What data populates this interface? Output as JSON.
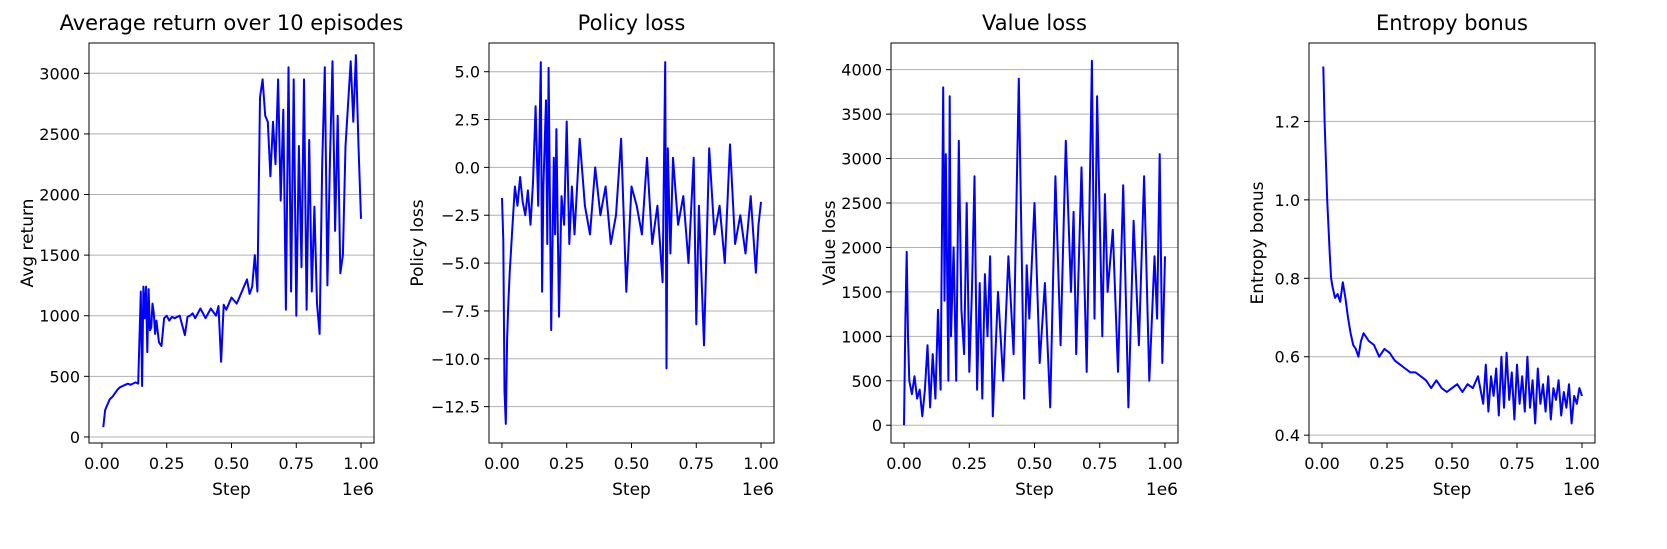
{
  "figure": {
    "panel_count": 4,
    "line_color": "#0000ff",
    "grid": "horizontal"
  },
  "chart_data": [
    {
      "type": "line",
      "title": "Average return over 10 episodes",
      "xlabel": "Step",
      "ylabel": "Avg return",
      "x_offset_label": "1e6",
      "xlim": [
        -0.05,
        1.05
      ],
      "ylim": [
        -50,
        3250
      ],
      "xticks": [
        0.0,
        0.25,
        0.5,
        0.75,
        1.0
      ],
      "xtick_labels": [
        "0.00",
        "0.25",
        "0.50",
        "0.75",
        "1.00"
      ],
      "yticks": [
        0,
        500,
        1000,
        1500,
        2000,
        2500,
        3000
      ],
      "ytick_labels": [
        "0",
        "500",
        "1000",
        "1500",
        "2000",
        "2500",
        "3000"
      ],
      "series": [
        {
          "x": [
            0.005,
            0.012,
            0.02,
            0.03,
            0.04,
            0.05,
            0.06,
            0.07,
            0.08,
            0.09,
            0.1,
            0.11,
            0.12,
            0.13,
            0.14,
            0.15,
            0.155,
            0.16,
            0.165,
            0.17,
            0.175,
            0.18,
            0.185,
            0.19,
            0.195,
            0.2,
            0.205,
            0.21,
            0.22,
            0.23,
            0.24,
            0.25,
            0.26,
            0.27,
            0.28,
            0.3,
            0.32,
            0.33,
            0.34,
            0.35,
            0.36,
            0.38,
            0.4,
            0.42,
            0.44,
            0.45,
            0.46,
            0.47,
            0.48,
            0.5,
            0.52,
            0.54,
            0.56,
            0.57,
            0.58,
            0.59,
            0.6,
            0.61,
            0.62,
            0.63,
            0.64,
            0.65,
            0.66,
            0.67,
            0.68,
            0.69,
            0.7,
            0.71,
            0.72,
            0.73,
            0.74,
            0.75,
            0.76,
            0.77,
            0.78,
            0.79,
            0.8,
            0.81,
            0.82,
            0.83,
            0.84,
            0.85,
            0.86,
            0.87,
            0.88,
            0.89,
            0.9,
            0.91,
            0.92,
            0.93,
            0.94,
            0.95,
            0.96,
            0.97,
            0.98,
            0.99,
            1.0
          ],
          "y": [
            80,
            220,
            260,
            310,
            330,
            360,
            390,
            410,
            420,
            430,
            440,
            430,
            440,
            450,
            440,
            1200,
            420,
            1240,
            980,
            1240,
            700,
            1220,
            880,
            900,
            1100,
            1020,
            850,
            960,
            780,
            750,
            980,
            1000,
            960,
            990,
            980,
            1000,
            840,
            990,
            1000,
            1020,
            980,
            1060,
            980,
            1060,
            1000,
            1080,
            620,
            1090,
            1050,
            1150,
            1100,
            1200,
            1300,
            1180,
            1240,
            1500,
            1200,
            2800,
            2950,
            2650,
            2600,
            2150,
            2600,
            2250,
            2950,
            1950,
            2700,
            1050,
            3050,
            1200,
            2950,
            1000,
            2400,
            1400,
            2950,
            1050,
            2450,
            1200,
            1900,
            1100,
            850,
            2250,
            3050,
            1250,
            2300,
            3100,
            1700,
            2650,
            1350,
            1500,
            2400,
            2750,
            3100,
            2600,
            3150,
            2400,
            1800
          ]
        }
      ]
    },
    {
      "type": "line",
      "title": "Policy loss",
      "xlabel": "Step",
      "ylabel": "Policy loss",
      "x_offset_label": "1e6",
      "xlim": [
        -0.05,
        1.05
      ],
      "ylim": [
        -14.4,
        6.5
      ],
      "xticks": [
        0.0,
        0.25,
        0.5,
        0.75,
        1.0
      ],
      "xtick_labels": [
        "0.00",
        "0.25",
        "0.50",
        "0.75",
        "1.00"
      ],
      "yticks": [
        -12.5,
        -10.0,
        -7.5,
        -5.0,
        -2.5,
        0.0,
        2.5,
        5.0
      ],
      "ytick_labels": [
        "−12.5",
        "−10.0",
        "−7.5",
        "−5.0",
        "−2.5",
        "0.0",
        "2.5",
        "5.0"
      ],
      "series": [
        {
          "x": [
            0.0,
            0.005,
            0.01,
            0.015,
            0.02,
            0.025,
            0.03,
            0.04,
            0.05,
            0.06,
            0.07,
            0.08,
            0.09,
            0.1,
            0.11,
            0.12,
            0.13,
            0.14,
            0.15,
            0.155,
            0.16,
            0.17,
            0.175,
            0.18,
            0.19,
            0.2,
            0.205,
            0.21,
            0.22,
            0.23,
            0.24,
            0.25,
            0.26,
            0.27,
            0.28,
            0.3,
            0.32,
            0.34,
            0.36,
            0.38,
            0.4,
            0.42,
            0.44,
            0.46,
            0.48,
            0.5,
            0.52,
            0.54,
            0.56,
            0.58,
            0.6,
            0.62,
            0.63,
            0.635,
            0.64,
            0.65,
            0.66,
            0.68,
            0.7,
            0.72,
            0.74,
            0.75,
            0.76,
            0.78,
            0.8,
            0.82,
            0.84,
            0.86,
            0.88,
            0.9,
            0.92,
            0.94,
            0.96,
            0.98,
            0.99,
            1.0
          ],
          "y": [
            -1.6,
            -3.8,
            -11.7,
            -13.4,
            -9.0,
            -7.0,
            -5.5,
            -3.2,
            -1.0,
            -2.0,
            -0.5,
            -1.8,
            -2.5,
            -1.2,
            -3.0,
            -0.8,
            3.2,
            -2.0,
            5.5,
            -6.5,
            -1.0,
            3.5,
            -4.0,
            5.2,
            -8.5,
            0.5,
            -3.5,
            2.0,
            -7.8,
            -1.5,
            -3.0,
            2.4,
            -4.0,
            -1.0,
            -3.5,
            1.5,
            -2.0,
            -3.5,
            0.0,
            -2.5,
            -1.0,
            -4.0,
            -2.5,
            1.5,
            -6.5,
            -1.0,
            -2.0,
            -3.5,
            0.5,
            -4.0,
            -2.0,
            -6.0,
            5.5,
            -10.5,
            1.0,
            -4.5,
            0.5,
            -3.0,
            -1.5,
            -5.0,
            0.5,
            -8.2,
            -2.0,
            -9.3,
            1.0,
            -3.5,
            -2.0,
            -5.0,
            1.2,
            -4.0,
            -2.5,
            -4.5,
            -1.5,
            -5.5,
            -3.0,
            -1.8
          ]
        }
      ]
    },
    {
      "type": "line",
      "title": "Value loss",
      "xlabel": "Step",
      "ylabel": "Value loss",
      "x_offset_label": "1e6",
      "xlim": [
        -0.05,
        1.05
      ],
      "ylim": [
        -200,
        4300
      ],
      "xticks": [
        0.0,
        0.25,
        0.5,
        0.75,
        1.0
      ],
      "xtick_labels": [
        "0.00",
        "0.25",
        "0.50",
        "0.75",
        "1.00"
      ],
      "yticks": [
        0,
        500,
        1000,
        1500,
        2000,
        2500,
        3000,
        3500,
        4000
      ],
      "ytick_labels": [
        "0",
        "500",
        "1000",
        "1500",
        "2000",
        "2500",
        "3000",
        "3500",
        "4000"
      ],
      "series": [
        {
          "x": [
            0.0,
            0.005,
            0.01,
            0.015,
            0.02,
            0.03,
            0.04,
            0.05,
            0.06,
            0.07,
            0.08,
            0.09,
            0.1,
            0.11,
            0.12,
            0.13,
            0.14,
            0.15,
            0.155,
            0.16,
            0.17,
            0.175,
            0.18,
            0.19,
            0.2,
            0.21,
            0.22,
            0.23,
            0.24,
            0.25,
            0.26,
            0.27,
            0.28,
            0.29,
            0.3,
            0.31,
            0.32,
            0.33,
            0.34,
            0.36,
            0.38,
            0.4,
            0.42,
            0.44,
            0.46,
            0.47,
            0.48,
            0.5,
            0.52,
            0.54,
            0.56,
            0.58,
            0.6,
            0.62,
            0.64,
            0.65,
            0.66,
            0.68,
            0.7,
            0.72,
            0.73,
            0.74,
            0.76,
            0.77,
            0.78,
            0.8,
            0.82,
            0.84,
            0.86,
            0.88,
            0.9,
            0.92,
            0.94,
            0.96,
            0.97,
            0.98,
            0.99,
            1.0
          ],
          "y": [
            0,
            1200,
            1950,
            1000,
            500,
            350,
            550,
            300,
            400,
            100,
            400,
            900,
            200,
            800,
            300,
            1300,
            400,
            3800,
            1400,
            3050,
            500,
            3700,
            1000,
            2000,
            500,
            3200,
            1300,
            800,
            2500,
            600,
            1500,
            2800,
            400,
            1600,
            300,
            1700,
            1000,
            1900,
            100,
            1500,
            500,
            1900,
            800,
            3900,
            300,
            1800,
            1200,
            2500,
            700,
            1600,
            200,
            2800,
            900,
            3200,
            1500,
            2400,
            800,
            2900,
            600,
            4100,
            1200,
            3700,
            1000,
            2600,
            1500,
            2200,
            600,
            2700,
            200,
            2300,
            900,
            2800,
            500,
            1900,
            1200,
            3050,
            700,
            1900
          ]
        }
      ]
    },
    {
      "type": "line",
      "title": "Entropy bonus",
      "xlabel": "Step",
      "ylabel": "Entropy bonus",
      "x_offset_label": "1e6",
      "xlim": [
        -0.05,
        1.05
      ],
      "ylim": [
        0.38,
        1.4
      ],
      "xticks": [
        0.0,
        0.25,
        0.5,
        0.75,
        1.0
      ],
      "xtick_labels": [
        "0.00",
        "0.25",
        "0.50",
        "0.75",
        "1.00"
      ],
      "yticks": [
        0.4,
        0.6,
        0.8,
        1.0,
        1.2
      ],
      "ytick_labels": [
        "0.4",
        "0.6",
        "0.8",
        "1.0",
        "1.2"
      ],
      "series": [
        {
          "x": [
            0.005,
            0.01,
            0.015,
            0.02,
            0.025,
            0.03,
            0.035,
            0.04,
            0.05,
            0.06,
            0.07,
            0.08,
            0.09,
            0.1,
            0.11,
            0.12,
            0.13,
            0.14,
            0.15,
            0.16,
            0.18,
            0.2,
            0.22,
            0.24,
            0.26,
            0.28,
            0.3,
            0.32,
            0.34,
            0.36,
            0.38,
            0.4,
            0.42,
            0.44,
            0.46,
            0.48,
            0.5,
            0.52,
            0.54,
            0.56,
            0.58,
            0.6,
            0.62,
            0.63,
            0.64,
            0.65,
            0.66,
            0.67,
            0.68,
            0.69,
            0.7,
            0.71,
            0.72,
            0.73,
            0.74,
            0.75,
            0.76,
            0.77,
            0.78,
            0.79,
            0.8,
            0.81,
            0.82,
            0.83,
            0.84,
            0.85,
            0.86,
            0.87,
            0.88,
            0.89,
            0.9,
            0.91,
            0.92,
            0.93,
            0.94,
            0.95,
            0.96,
            0.97,
            0.98,
            0.99,
            1.0
          ],
          "y": [
            1.34,
            1.2,
            1.1,
            1.0,
            0.93,
            0.86,
            0.8,
            0.78,
            0.75,
            0.76,
            0.74,
            0.79,
            0.75,
            0.7,
            0.66,
            0.63,
            0.62,
            0.6,
            0.64,
            0.66,
            0.64,
            0.63,
            0.6,
            0.62,
            0.61,
            0.59,
            0.58,
            0.57,
            0.56,
            0.56,
            0.55,
            0.54,
            0.52,
            0.54,
            0.52,
            0.51,
            0.52,
            0.53,
            0.51,
            0.53,
            0.52,
            0.55,
            0.48,
            0.58,
            0.46,
            0.55,
            0.5,
            0.57,
            0.45,
            0.6,
            0.47,
            0.61,
            0.49,
            0.56,
            0.44,
            0.58,
            0.48,
            0.55,
            0.46,
            0.6,
            0.47,
            0.54,
            0.43,
            0.57,
            0.48,
            0.53,
            0.46,
            0.55,
            0.44,
            0.52,
            0.49,
            0.54,
            0.45,
            0.51,
            0.47,
            0.53,
            0.43,
            0.5,
            0.48,
            0.52,
            0.5
          ]
        }
      ]
    }
  ]
}
